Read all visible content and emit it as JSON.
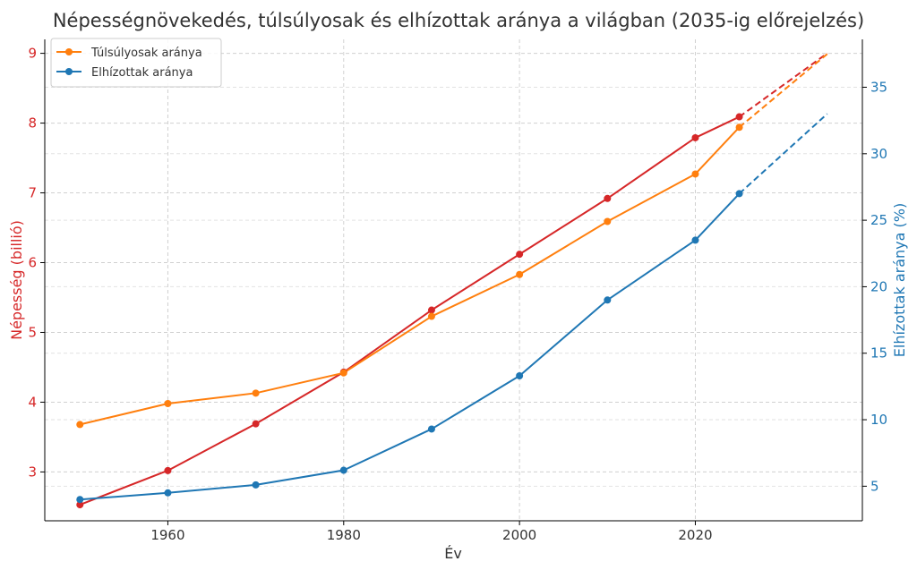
{
  "chart_data": {
    "type": "line",
    "title": "Népességnövekedés, túlsúlyosak és elhízottak aránya a világban (2035-ig előrejelzés)",
    "xlabel": "Év",
    "ylabel_left": "Népesség (billió)",
    "ylabel_right": "Elhízottak aránya (%)",
    "x_ticks": [
      1960,
      1980,
      2000,
      2020
    ],
    "y_left_ticks": [
      3,
      4,
      5,
      6,
      7,
      8,
      9
    ],
    "y_right_ticks": [
      5,
      10,
      15,
      20,
      25,
      30,
      35
    ],
    "xlim": [
      1946,
      2039
    ],
    "ylim_left": [
      2.3,
      9.2
    ],
    "ylim_right": [
      2.4,
      38.6
    ],
    "grid": true,
    "legend_position": "upper-left",
    "colors": {
      "population": "#d62728",
      "overweight": "#ff7f0e",
      "obese": "#1f77b4",
      "left_axis": "#d62728",
      "right_axis": "#1f77b4"
    },
    "series": [
      {
        "key": "population",
        "axis": "left",
        "color": "#d62728",
        "x": [
          1950,
          1960,
          1970,
          1980,
          1990,
          2000,
          2010,
          2020,
          2025
        ],
        "values": [
          2.53,
          3.02,
          3.69,
          4.43,
          5.32,
          6.12,
          6.92,
          7.79,
          8.09
        ],
        "forecast_x": [
          2025,
          2035
        ],
        "forecast_values": [
          8.09,
          9.0
        ]
      },
      {
        "key": "overweight",
        "name": "Túlsúlyosak aránya",
        "axis": "left",
        "color": "#ff7f0e",
        "x": [
          1950,
          1960,
          1970,
          1980,
          1990,
          2000,
          2010,
          2020,
          2025
        ],
        "values": [
          3.68,
          3.98,
          4.13,
          4.42,
          5.23,
          5.83,
          6.59,
          7.27,
          7.94
        ],
        "forecast_x": [
          2025,
          2035
        ],
        "forecast_values": [
          7.94,
          8.99
        ]
      },
      {
        "key": "obese",
        "name": "Elhízottak aránya",
        "axis": "right",
        "color": "#1f77b4",
        "x": [
          1950,
          1960,
          1970,
          1980,
          1990,
          2000,
          2010,
          2020,
          2025
        ],
        "values": [
          4.0,
          4.5,
          5.1,
          6.2,
          9.3,
          13.3,
          19.0,
          23.5,
          27.0
        ],
        "forecast_x": [
          2025,
          2035
        ],
        "forecast_values": [
          27.0,
          33.0
        ]
      }
    ]
  }
}
